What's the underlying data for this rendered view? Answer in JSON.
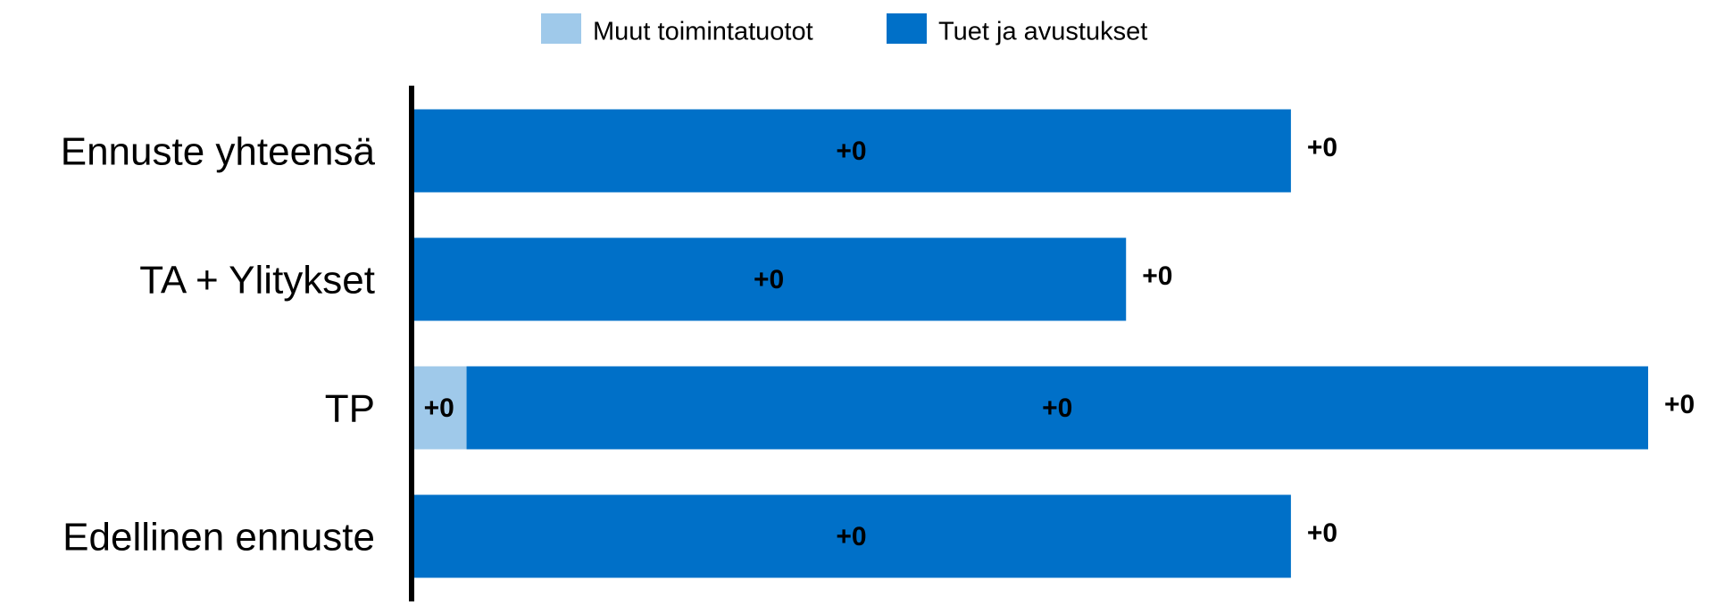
{
  "chart_data": {
    "type": "bar",
    "orientation": "horizontal",
    "stacked": true,
    "categories": [
      "Ennuste yhteensä",
      "TA + Ylitykset",
      "TP",
      "Edellinen ennuste"
    ],
    "series": [
      {
        "name": "Muut toimintatuotot",
        "color": "#9fc9ea",
        "values": [
          null,
          null,
          0.02,
          null
        ],
        "value_labels": [
          null,
          null,
          "+0",
          null
        ]
      },
      {
        "name": "Tuet ja avustukset",
        "color": "#0070c8",
        "values": [
          0.32,
          0.26,
          0.43,
          0.32
        ],
        "value_labels": [
          "+0",
          "+0",
          "+0",
          "+0"
        ]
      }
    ],
    "totals": [
      0.32,
      0.26,
      0.45,
      0.32
    ],
    "total_labels": [
      "+0",
      "+0",
      "+0",
      "+0"
    ],
    "legend": "top"
  }
}
